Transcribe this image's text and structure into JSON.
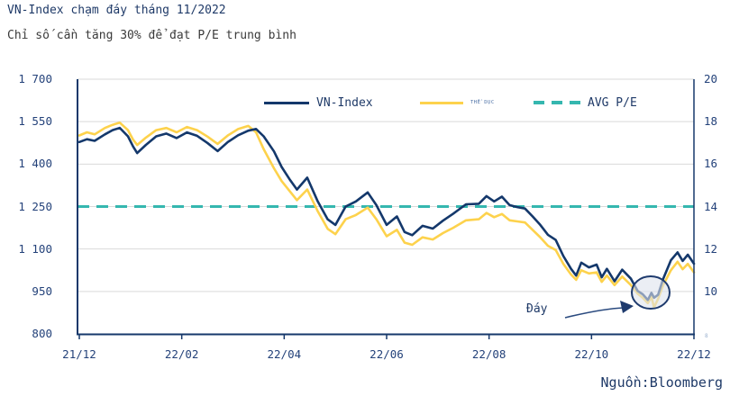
{
  "header": {
    "title": "VN-Index chạm đáy tháng 11/2022",
    "subtitle": "Chỉ số cần tăng 30% để đạt P/E trung bình"
  },
  "source_label": "Nguồn:Bloomberg",
  "annotation": {
    "bottom_label": "Đáy"
  },
  "legend": {
    "vnindex_label": "VN-Index",
    "pe_label": "THỂ DỤC",
    "avg_pe_label": "AVG P/E"
  },
  "colors": {
    "vnindex_line": "#14386b",
    "pe_line": "#fdd24c",
    "avg_pe_line": "#35b7af",
    "axis": "#16386b",
    "gridline": "#d9d9d9",
    "text_navy": "#1f3a68",
    "subtitle_text": "#3a3a3a",
    "circle_fill": "rgba(222,227,237,0.6)"
  },
  "chart_data": {
    "type": "line",
    "title": "VN-Index chạm đáy tháng 11/2022",
    "subtitle": "Chỉ số cần tăng 30% để đạt P/E trung bình",
    "legend_position": "top-inside",
    "grid": true,
    "x_axis": {
      "tick_labels": [
        "21/12",
        "22/02",
        "22/04",
        "22/06",
        "22/08",
        "22/10",
        "22/12"
      ],
      "tick_months": [
        0,
        2,
        4,
        6,
        8,
        10,
        12
      ],
      "range_months": [
        0,
        12
      ]
    },
    "left_axis": {
      "label": "VN-Index",
      "min": 800,
      "max": 1700,
      "tick_values": [
        1700,
        1550,
        1400,
        1250,
        1100,
        950,
        800
      ],
      "tick_labels": [
        "1 700",
        "1 550",
        "1 400",
        "1 250",
        "1 100",
        "950",
        "800"
      ]
    },
    "right_axis": {
      "label": "P/E",
      "min": 8,
      "max": 20,
      "tick_values": [
        20,
        18,
        16,
        14,
        12,
        10,
        8
      ],
      "tick_labels": [
        "20",
        "18",
        "16",
        "14",
        "12",
        "10",
        "8"
      ]
    },
    "x_months": [
      0,
      0.15,
      0.3,
      0.5,
      0.65,
      0.79,
      0.95,
      1.05,
      1.13,
      1.3,
      1.5,
      1.7,
      1.9,
      2.1,
      2.3,
      2.5,
      2.7,
      2.9,
      3.1,
      3.3,
      3.45,
      3.6,
      3.8,
      3.95,
      4.1,
      4.25,
      4.45,
      4.65,
      4.85,
      5.0,
      5.2,
      5.4,
      5.63,
      5.8,
      6.0,
      6.2,
      6.35,
      6.5,
      6.7,
      6.9,
      7.1,
      7.3,
      7.55,
      7.8,
      7.95,
      8.1,
      8.25,
      8.4,
      8.55,
      8.7,
      8.85,
      9.0,
      9.15,
      9.3,
      9.45,
      9.6,
      9.7,
      9.8,
      9.95,
      10.1,
      10.2,
      10.3,
      10.45,
      10.6,
      10.77,
      10.9,
      11.0,
      11.1,
      11.17,
      11.22,
      11.3,
      11.4,
      11.55,
      11.68,
      11.78,
      11.88,
      12.0
    ],
    "series": [
      {
        "name": "VN-Index",
        "axis": "left",
        "color": "#14386b",
        "style": "solid",
        "values": [
          1478,
          1488,
          1482,
          1505,
          1520,
          1528,
          1498,
          1462,
          1439,
          1468,
          1498,
          1508,
          1492,
          1512,
          1500,
          1475,
          1446,
          1478,
          1502,
          1518,
          1524,
          1498,
          1445,
          1390,
          1348,
          1310,
          1352,
          1270,
          1205,
          1185,
          1250,
          1268,
          1300,
          1255,
          1185,
          1215,
          1160,
          1149,
          1182,
          1172,
          1200,
          1225,
          1258,
          1260,
          1287,
          1268,
          1285,
          1255,
          1248,
          1243,
          1215,
          1185,
          1150,
          1132,
          1075,
          1030,
          1006,
          1052,
          1035,
          1045,
          1000,
          1030,
          986,
          1027,
          995,
          952,
          940,
          920,
          945,
          928,
          938,
          995,
          1060,
          1088,
          1058,
          1080,
          1048
        ]
      },
      {
        "name": "THỂ DỤC (P/E)",
        "axis": "right",
        "color": "#fdd24c",
        "style": "solid",
        "values": [
          17.35,
          17.5,
          17.4,
          17.7,
          17.85,
          17.95,
          17.6,
          17.15,
          16.9,
          17.25,
          17.6,
          17.7,
          17.5,
          17.75,
          17.6,
          17.3,
          16.95,
          17.35,
          17.65,
          17.8,
          17.5,
          16.7,
          15.8,
          15.2,
          14.75,
          14.3,
          14.8,
          13.8,
          12.95,
          12.7,
          13.4,
          13.6,
          13.95,
          13.4,
          12.6,
          12.9,
          12.3,
          12.2,
          12.55,
          12.45,
          12.75,
          13.0,
          13.35,
          13.4,
          13.7,
          13.5,
          13.65,
          13.35,
          13.3,
          13.25,
          12.9,
          12.55,
          12.15,
          11.95,
          11.3,
          10.8,
          10.55,
          11.0,
          10.85,
          10.9,
          10.45,
          10.75,
          10.3,
          10.7,
          10.3,
          9.9,
          9.7,
          9.45,
          9.75,
          9.25,
          9.65,
          10.3,
          11.0,
          11.4,
          11.05,
          11.3,
          10.9
        ]
      },
      {
        "name": "AVG P/E",
        "axis": "right",
        "color": "#35b7af",
        "style": "dashed",
        "type": "reference",
        "value": 14
      }
    ],
    "annotations": {
      "bottom_label": "Đáy",
      "circle_around_bottom": {
        "month": 11.15,
        "vnindex": 920
      }
    }
  }
}
